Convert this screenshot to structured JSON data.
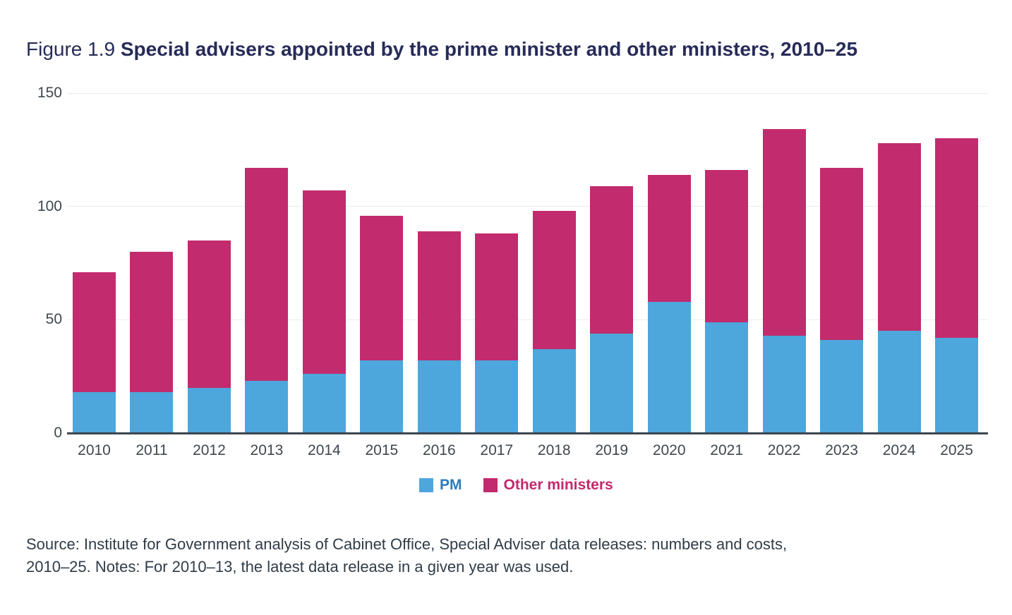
{
  "figure": {
    "label": "Figure 1.9",
    "title": "Special advisers appointed by the prime minister and other ministers, 2010–25"
  },
  "colors": {
    "pm_bar": "#4da6dc",
    "other_bar": "#c22b6e",
    "pm_label_text": "#2b7cba",
    "other_label_text": "#c2296d",
    "title_text": "#272b58",
    "axis_text": "#3f474e",
    "axis_line": "#3c4650",
    "gridline": "#ededed"
  },
  "legend": {
    "items": [
      {
        "label": "PM"
      },
      {
        "label": "Other ministers"
      }
    ]
  },
  "source_note": {
    "line1": "Source: Institute for Government analysis of Cabinet Office, Special Adviser data releases: numbers and costs,",
    "line2": "2010–25. Notes: For 2010–13, the latest data release in a given year was used."
  },
  "chart_data": {
    "type": "bar",
    "stacked": true,
    "title": "Special advisers appointed by the prime minister and other ministers, 2010–25",
    "categories": [
      "2010",
      "2011",
      "2012",
      "2013",
      "2014",
      "2015",
      "2016",
      "2017",
      "2018",
      "2019",
      "2020",
      "2021",
      "2022",
      "2023",
      "2024",
      "2025"
    ],
    "series": [
      {
        "name": "PM",
        "color": "#4da6dc",
        "values": [
          18,
          18,
          20,
          23,
          26,
          32,
          32,
          32,
          37,
          44,
          58,
          49,
          43,
          41,
          45,
          42
        ]
      },
      {
        "name": "Other ministers",
        "color": "#c22b6e",
        "values": [
          53,
          62,
          65,
          94,
          81,
          64,
          57,
          56,
          61,
          65,
          56,
          67,
          91,
          76,
          83,
          88
        ]
      }
    ],
    "totals": [
      71,
      80,
      85,
      117,
      107,
      96,
      89,
      88,
      98,
      109,
      114,
      116,
      134,
      117,
      128,
      130
    ],
    "xlabel": "",
    "ylabel": "",
    "y_ticks": [
      0,
      50,
      100,
      150
    ],
    "ylim": [
      0,
      150
    ],
    "grid": "horizontal",
    "legend_position": "bottom"
  }
}
